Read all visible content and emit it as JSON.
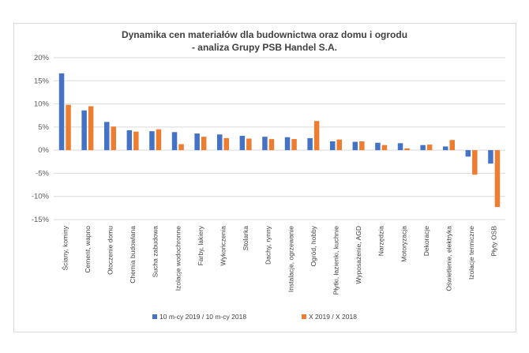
{
  "chart_data": {
    "type": "bar",
    "title": "Dynamika cen materiałów dla budownictwa oraz domu i ogrodu",
    "subtitle": "- analiza Grupy PSB Handel S.A.",
    "y_ticks": [
      "20%",
      "15%",
      "10%",
      "5%",
      "0%",
      "-5%",
      "-10%",
      "-15%"
    ],
    "ylim": [
      -15,
      20
    ],
    "grid": true,
    "legend_position": "bottom",
    "categories": [
      "Ściany, kominy",
      "Cement, wapno",
      "Otoczenie domu",
      "Chemia budowlana",
      "Sucha zabudowa",
      "Izolacje wodochronne",
      "Farby, lakiery",
      "Wykończenia",
      "Stolarka",
      "Dachy, rynny",
      "Instalacje, ogrzewanie",
      "Ogród, hobby",
      "Płytki, łazienki, kuchnie",
      "Wyposażenie, AGD",
      "Narzędzia",
      "Motoryzacja",
      "Dekoracje",
      "Oświetlenie, elektryka",
      "Izolacje termiczne",
      "Płyty OSB"
    ],
    "series": [
      {
        "name": "10 m-cy 2019 / 10 m-cy 2018",
        "color": "#4472c4",
        "values": [
          16.6,
          8.6,
          6.1,
          4.3,
          4.1,
          3.9,
          3.6,
          3.4,
          3.1,
          2.9,
          2.8,
          2.6,
          1.9,
          1.8,
          1.6,
          1.5,
          1.1,
          0.8,
          -1.4,
          -2.9
        ]
      },
      {
        "name": "X 2019 / X 2018",
        "color": "#ed7d31",
        "values": [
          9.8,
          9.5,
          5.1,
          4.0,
          4.5,
          1.3,
          2.9,
          2.6,
          2.5,
          2.4,
          2.4,
          6.3,
          2.3,
          1.9,
          1.1,
          0.4,
          1.2,
          2.2,
          -5.3,
          -12.3
        ]
      }
    ]
  }
}
